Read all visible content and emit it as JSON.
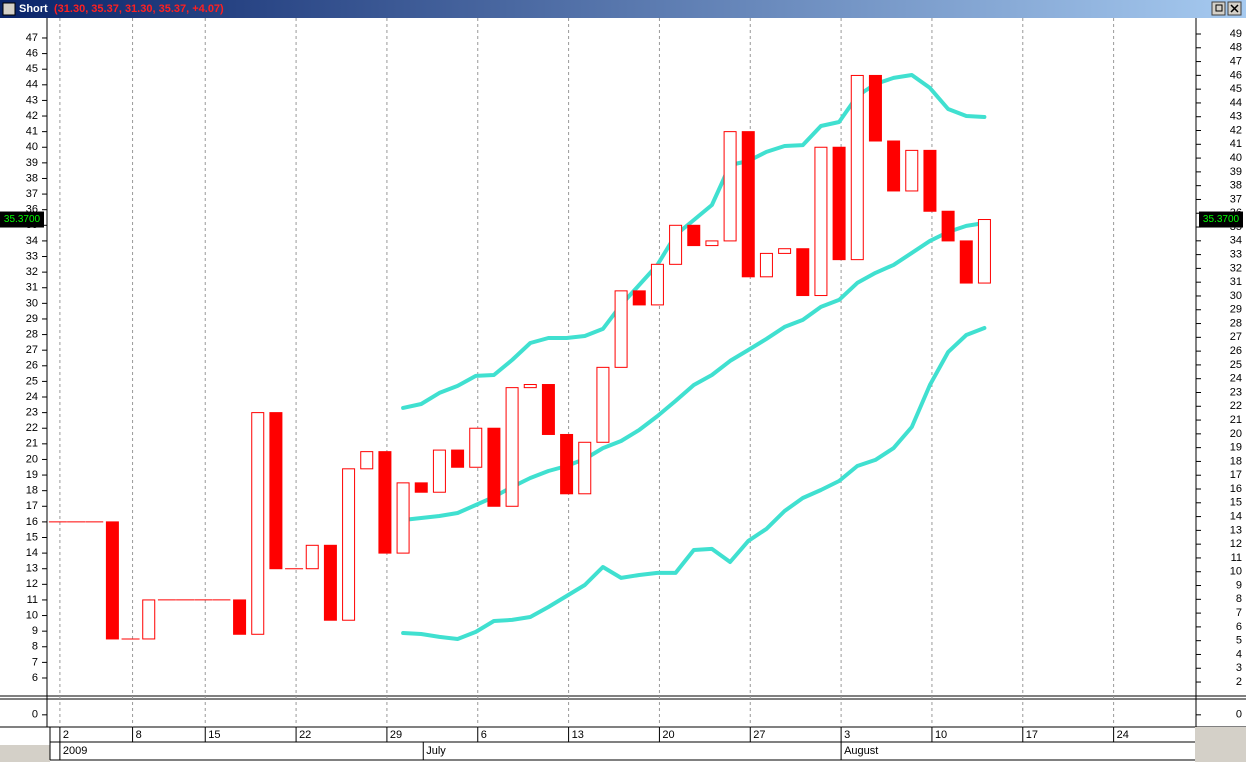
{
  "chart_data": {
    "type": "candlestick",
    "title": "Short",
    "subtitle": "(31.30, 35.37, 31.30, 35.37, +4.07)",
    "up_color": "#ffffff",
    "down_color": "#ff0000",
    "edge_color": "#ff0000",
    "open": [
      16,
      16,
      16,
      16,
      8.5,
      8.5,
      11,
      11,
      11,
      11,
      11,
      8.8,
      23,
      13,
      13,
      14.5,
      9.7,
      19.4,
      20.5,
      14,
      18.5,
      17.9,
      20.6,
      19.5,
      22,
      17,
      24.6,
      24.8,
      21.6,
      17.8,
      21.1,
      25.9,
      30.8,
      29.9,
      32.5,
      35.0,
      33.7,
      34.0,
      41.0,
      31.7,
      33.2,
      33.5,
      30.5,
      40.0,
      32.8,
      44.6,
      40.4,
      37.2,
      39.8,
      35.9,
      34.0,
      31.3
    ],
    "close": [
      16,
      16,
      16,
      8.5,
      8.5,
      11,
      11,
      11,
      11,
      11,
      8.8,
      23,
      13,
      13,
      14.5,
      9.7,
      19.4,
      20.5,
      14,
      18.5,
      17.9,
      20.6,
      19.5,
      22,
      17,
      24.6,
      24.8,
      21.6,
      17.8,
      21.1,
      25.9,
      30.8,
      29.9,
      32.5,
      35.0,
      33.7,
      34.0,
      41.0,
      31.7,
      33.2,
      33.5,
      30.5,
      40.0,
      32.8,
      44.6,
      40.4,
      37.2,
      39.8,
      35.9,
      34.0,
      31.3,
      35.37
    ],
    "series": [
      {
        "color": "#40e0d0",
        "values": [
          null,
          null,
          null,
          null,
          null,
          null,
          null,
          null,
          null,
          null,
          null,
          null,
          null,
          null,
          null,
          null,
          null,
          null,
          null,
          23.3,
          23.55,
          24.26,
          24.71,
          25.35,
          25.41,
          26.37,
          27.46,
          27.78,
          27.78,
          27.91,
          28.36,
          29.9,
          31.18,
          32.46,
          34.38,
          35.34,
          36.3,
          38.86,
          39.12,
          39.7,
          40.08,
          40.14,
          41.36,
          41.62,
          43.28,
          44.05,
          44.44,
          44.63,
          43.8,
          42.45,
          42.0,
          41.94
        ]
      },
      {
        "color": "#40e0d0",
        "values": [
          null,
          null,
          null,
          null,
          null,
          null,
          null,
          null,
          null,
          null,
          null,
          null,
          null,
          null,
          null,
          null,
          null,
          null,
          null,
          16.12,
          16.25,
          16.38,
          16.57,
          17.08,
          17.6,
          18.24,
          18.81,
          19.26,
          19.58,
          20.03,
          20.73,
          21.18,
          21.89,
          22.78,
          23.75,
          24.77,
          25.41,
          26.31,
          27.01,
          27.72,
          28.49,
          28.94,
          29.77,
          30.22,
          31.31,
          31.95,
          32.46,
          33.23,
          34.0,
          34.57,
          34.96,
          35.15
        ]
      },
      {
        "color": "#40e0d0",
        "values": [
          null,
          null,
          null,
          null,
          null,
          null,
          null,
          null,
          null,
          null,
          null,
          null,
          null,
          null,
          null,
          null,
          null,
          null,
          null,
          8.88,
          8.82,
          8.63,
          8.5,
          8.95,
          9.65,
          9.72,
          9.91,
          10.55,
          11.25,
          11.96,
          13.11,
          12.41,
          12.6,
          12.73,
          12.73,
          14.2,
          14.27,
          13.43,
          14.78,
          15.55,
          16.7,
          17.53,
          18.04,
          18.62,
          19.58,
          19.97,
          20.73,
          22.08,
          24.77,
          26.88,
          27.97,
          28.42
        ]
      }
    ],
    "xlim": [
      -0.6,
      62.7
    ],
    "xticks": [
      {
        "value": 0,
        "label": "2"
      },
      {
        "value": 4,
        "label": "8"
      },
      {
        "value": 8,
        "label": "15"
      },
      {
        "value": 13,
        "label": "22"
      },
      {
        "value": 18,
        "label": "29"
      },
      {
        "value": 23,
        "label": "6"
      },
      {
        "value": 28,
        "label": "13"
      },
      {
        "value": 33,
        "label": "20"
      },
      {
        "value": 38,
        "label": "27"
      },
      {
        "value": 43,
        "label": "3"
      },
      {
        "value": 48,
        "label": "10"
      },
      {
        "value": 53,
        "label": "17"
      },
      {
        "value": 58,
        "label": "24"
      }
    ],
    "month_ticks": [
      {
        "value": 0,
        "label": "2009"
      },
      {
        "value": 20,
        "label": "July"
      },
      {
        "value": 43,
        "label": "August"
      }
    ],
    "ylim": [
      4.91,
      48.28
    ],
    "yticks": [
      6,
      7,
      8,
      9,
      10,
      11,
      12,
      13,
      14,
      15,
      16,
      17,
      18,
      19,
      20,
      21,
      22,
      23,
      24,
      25,
      26,
      27,
      28,
      29,
      30,
      31,
      32,
      33,
      34,
      35,
      36,
      37,
      38,
      39,
      40,
      41,
      42,
      43,
      44,
      45,
      46,
      47
    ],
    "y2lim": [
      1.06,
      50.16
    ],
    "y2ticks": [
      2,
      3,
      4,
      5,
      6,
      7,
      8,
      9,
      10,
      11,
      12,
      13,
      14,
      15,
      16,
      17,
      18,
      19,
      20,
      21,
      22,
      23,
      24,
      25,
      26,
      27,
      28,
      29,
      30,
      31,
      32,
      33,
      34,
      35,
      36,
      37,
      38,
      39,
      40,
      41,
      42,
      43,
      44,
      45,
      46,
      47,
      48,
      49
    ],
    "last_value": {
      "value": 35.37,
      "label": "35.3700"
    },
    "lower_panel": {
      "ylim": [
        -1,
        1.3
      ],
      "yticks": [
        0
      ]
    },
    "grid": true
  }
}
